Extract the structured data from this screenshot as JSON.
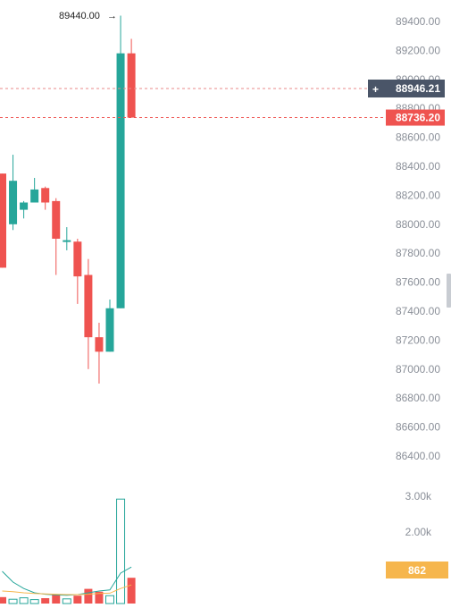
{
  "chart_data": {
    "type": "candlestick",
    "price_axis": {
      "ticks": [
        "89400.00",
        "89200.00",
        "89000.00",
        "88800.00",
        "88600.00",
        "88400.00",
        "88200.00",
        "88000.00",
        "87800.00",
        "87600.00",
        "87400.00",
        "87200.00",
        "87000.00",
        "86800.00",
        "86600.00",
        "86400.00"
      ],
      "range": [
        86400,
        89400
      ]
    },
    "volume_axis": {
      "ticks": [
        "3.00k",
        "2.00k"
      ]
    },
    "candles": [
      {
        "o": 88350,
        "h": 88350,
        "l": 87700,
        "c": 87700
      },
      {
        "o": 88000,
        "h": 88480,
        "l": 87960,
        "c": 88300
      },
      {
        "o": 88100,
        "h": 88160,
        "l": 88040,
        "c": 88150
      },
      {
        "o": 88150,
        "h": 88320,
        "l": 88150,
        "c": 88240
      },
      {
        "o": 88250,
        "h": 88260,
        "l": 88100,
        "c": 88150
      },
      {
        "o": 88160,
        "h": 88180,
        "l": 87650,
        "c": 87900
      },
      {
        "o": 87880,
        "h": 87980,
        "l": 87820,
        "c": 87890
      },
      {
        "o": 87880,
        "h": 87900,
        "l": 87450,
        "c": 87640
      },
      {
        "o": 87650,
        "h": 87760,
        "l": 87000,
        "c": 87220
      },
      {
        "o": 87220,
        "h": 87320,
        "l": 86900,
        "c": 87120
      },
      {
        "o": 87120,
        "h": 87480,
        "l": 87120,
        "c": 87420
      },
      {
        "o": 87420,
        "h": 89440,
        "l": 87420,
        "c": 89180
      },
      {
        "o": 89180,
        "h": 89280,
        "l": 88736.2,
        "c": 88736.2
      }
    ],
    "volumes": [
      180,
      120,
      160,
      110,
      150,
      260,
      130,
      220,
      410,
      330,
      220,
      2920,
      720
    ],
    "volume_ma_1": [
      900,
      600,
      420,
      300,
      260,
      240,
      230,
      250,
      300,
      350,
      380,
      850,
      1020
    ],
    "volume_ma_2": [
      350,
      330,
      300,
      280,
      270,
      260,
      250,
      250,
      260,
      280,
      290,
      420,
      520
    ],
    "peak_label": "89440.00",
    "crosshair_price": "88946.21",
    "last_price": "88736.20",
    "volume_badge": "862",
    "colors": {
      "up": "#26a69a",
      "down": "#ef5350",
      "axis_text": "#8a8f98",
      "crosshair_badge": "#4a5568",
      "last_badge": "#ef5350",
      "volume_badge": "#f6b64d",
      "ma_1": "#26a69a",
      "ma_2": "#f6b64d"
    }
  }
}
